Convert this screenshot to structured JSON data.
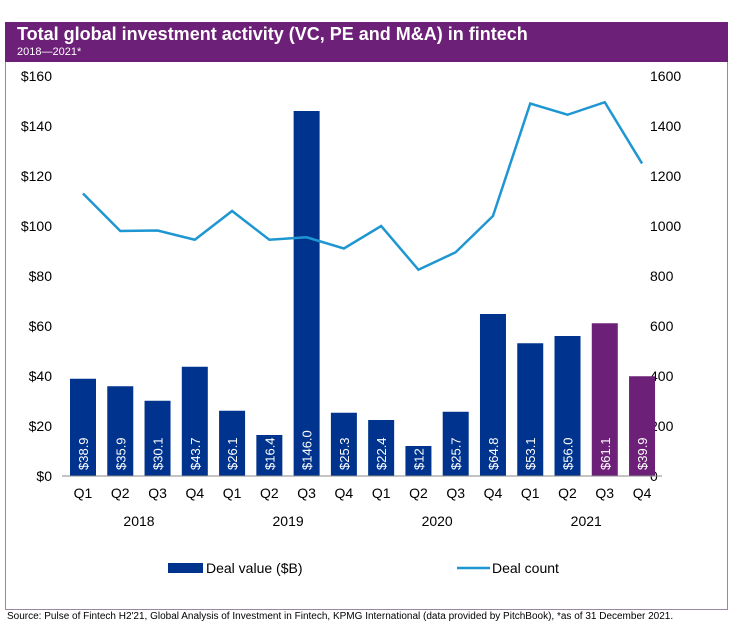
{
  "chart_data": {
    "type": "bar+line",
    "title": "Total global investment activity (VC, PE and M&A) in fintech",
    "subtitle": "2018—2021*",
    "categories": [
      "Q1",
      "Q2",
      "Q3",
      "Q4",
      "Q1",
      "Q2",
      "Q3",
      "Q4",
      "Q1",
      "Q2",
      "Q3",
      "Q4",
      "Q1",
      "Q2",
      "Q3",
      "Q4"
    ],
    "years": [
      "2018",
      "2019",
      "2020",
      "2021"
    ],
    "series": [
      {
        "name": "Deal value ($B)",
        "type": "bar",
        "axis": "left",
        "values": [
          38.9,
          35.9,
          30.1,
          43.7,
          26.1,
          16.4,
          146.0,
          25.3,
          22.4,
          12,
          25.7,
          64.8,
          53.1,
          56.0,
          61.1,
          39.9
        ],
        "labels": [
          "$38.9",
          "$35.9",
          "$30.1",
          "$43.7",
          "$26.1",
          "$16.4",
          "$146.0",
          "$25.3",
          "$22.4",
          "$12",
          "$25.7",
          "$64.8",
          "$53.1",
          "$56.0",
          "$61.1",
          "$39.9"
        ],
        "color": "#00338d",
        "highlight_color": "#6d2077",
        "highlight_indices": [
          14,
          15
        ]
      },
      {
        "name": "Deal count",
        "type": "line",
        "axis": "right",
        "values": [
          1130,
          980,
          982,
          945,
          1060,
          945,
          955,
          910,
          1000,
          825,
          895,
          1040,
          1490,
          1445,
          1495,
          1250
        ],
        "color": "#1e96d2"
      }
    ],
    "left_axis": {
      "range": [
        0,
        160
      ],
      "ticks": [
        "$0",
        "$20",
        "$40",
        "$60",
        "$80",
        "$100",
        "$120",
        "$140",
        "$160"
      ]
    },
    "right_axis": {
      "range": [
        0,
        1600
      ],
      "ticks": [
        "0",
        "200",
        "400",
        "600",
        "800",
        "1000",
        "1200",
        "1400",
        "1600"
      ]
    },
    "grid": false,
    "legend": "bottom"
  },
  "source": "Source: Pulse of Fintech H2'21, Global Analysis of Investment in Fintech, KPMG International (data provided by PitchBook), *as of 31 December 2021."
}
